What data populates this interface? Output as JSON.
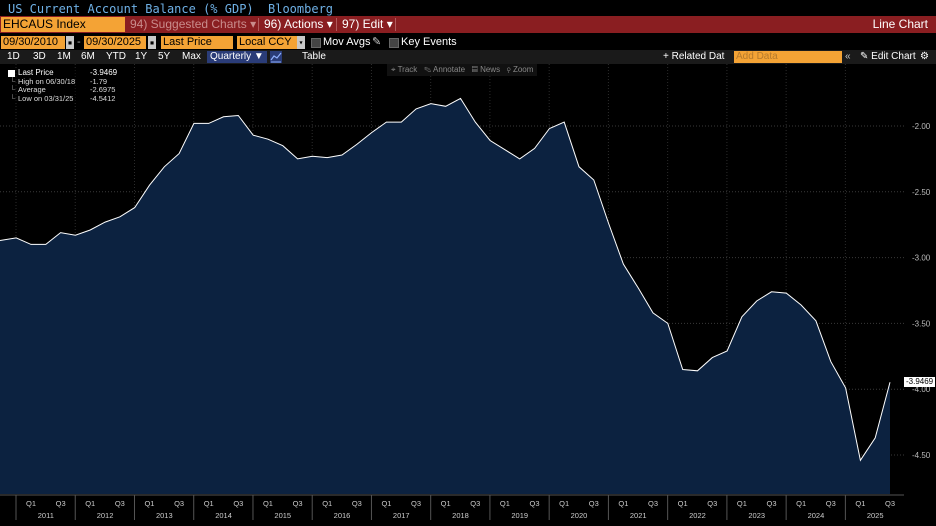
{
  "window": {
    "title": "US Current Account Balance (% GDP)",
    "source": "Bloomberg"
  },
  "command_bar": {
    "ticker": "EHCAUS Index",
    "suggested_charts": "94) Suggested Charts",
    "actions": "96) Actions",
    "edit": "97) Edit",
    "chart_type": "Line Chart"
  },
  "options": {
    "start_date": "09/30/2010",
    "end_date": "09/30/2025",
    "field": "Last Price",
    "currency": "Local CCY",
    "mov_avgs": "Mov Avgs",
    "key_events": "Key Events"
  },
  "range_bar": {
    "ranges": [
      "1D",
      "3D",
      "1M",
      "6M",
      "YTD",
      "1Y",
      "5Y",
      "Max"
    ],
    "frequency": "Quarterly",
    "table": "Table",
    "related_data": "+ Related Dat",
    "add_data_placeholder": "Add Data",
    "edit_chart": "Edit Chart"
  },
  "chart_tools": [
    "Track",
    "Annotate",
    "News",
    "Zoom"
  ],
  "legend": {
    "last_price_label": "Last Price",
    "last_price_value": "-3.9469",
    "high_label": "High on 06/30/18",
    "high_value": "-1.79",
    "average_label": "Average",
    "average_value": "-2.6975",
    "low_label": "Low on 03/31/25",
    "low_value": "-4.5412"
  },
  "last_tag": "-3.9469",
  "colors": {
    "area_fill": "#0c2240",
    "line": "#ffffff",
    "accent_orange": "#f4a335",
    "command_red": "#8a1e21",
    "title_blue": "#6fb1e6"
  },
  "chart_data": {
    "type": "area",
    "title": "US Current Account Balance (% GDP)",
    "xlabel": "",
    "ylabel": "",
    "ylim": [
      -4.8,
      -1.6
    ],
    "y_ticks": [
      -2.0,
      -2.5,
      -3.0,
      -3.5,
      -4.0,
      -4.5
    ],
    "y_tick_labels": [
      "-2.00",
      "-2.50",
      "-3.00",
      "-3.50",
      "-4.00",
      "-4.50"
    ],
    "x_years": [
      "2011",
      "2012",
      "2013",
      "2014",
      "2015",
      "2016",
      "2017",
      "2018",
      "2019",
      "2020",
      "2021",
      "2022",
      "2023",
      "2024",
      "2025"
    ],
    "x_quarter_labels": [
      "Q1",
      "Q3"
    ],
    "grid": true,
    "legend_position": "top-left",
    "series": [
      {
        "name": "Last Price",
        "x": [
          "2010Q3",
          "2010Q4",
          "2011Q1",
          "2011Q2",
          "2011Q3",
          "2011Q4",
          "2012Q1",
          "2012Q2",
          "2012Q3",
          "2012Q4",
          "2013Q1",
          "2013Q2",
          "2013Q3",
          "2013Q4",
          "2014Q1",
          "2014Q2",
          "2014Q3",
          "2014Q4",
          "2015Q1",
          "2015Q2",
          "2015Q3",
          "2015Q4",
          "2016Q1",
          "2016Q2",
          "2016Q3",
          "2016Q4",
          "2017Q1",
          "2017Q2",
          "2017Q3",
          "2017Q4",
          "2018Q1",
          "2018Q2",
          "2018Q3",
          "2018Q4",
          "2019Q1",
          "2019Q2",
          "2019Q3",
          "2019Q4",
          "2020Q1",
          "2020Q2",
          "2020Q3",
          "2020Q4",
          "2021Q1",
          "2021Q2",
          "2021Q3",
          "2021Q4",
          "2022Q1",
          "2022Q2",
          "2022Q3",
          "2022Q4",
          "2023Q1",
          "2023Q2",
          "2023Q3",
          "2023Q4",
          "2024Q1",
          "2024Q2",
          "2024Q3",
          "2024Q4",
          "2025Q1",
          "2025Q2",
          "2025Q3"
        ],
        "values": [
          -2.87,
          -2.85,
          -2.9,
          -2.9,
          -2.81,
          -2.83,
          -2.79,
          -2.73,
          -2.69,
          -2.62,
          -2.45,
          -2.31,
          -2.21,
          -1.98,
          -1.98,
          -1.93,
          -1.92,
          -2.07,
          -2.1,
          -2.15,
          -2.25,
          -2.23,
          -2.24,
          -2.22,
          -2.14,
          -2.05,
          -1.97,
          -1.97,
          -1.87,
          -1.83,
          -1.85,
          -1.79,
          -1.97,
          -2.11,
          -2.18,
          -2.25,
          -2.17,
          -2.02,
          -1.97,
          -2.31,
          -2.41,
          -2.74,
          -3.05,
          -3.23,
          -3.42,
          -3.5,
          -3.85,
          -3.86,
          -3.76,
          -3.71,
          -3.45,
          -3.33,
          -3.26,
          -3.27,
          -3.36,
          -3.48,
          -3.79,
          -3.99,
          -4.54,
          -4.37,
          -3.9469
        ]
      }
    ]
  }
}
